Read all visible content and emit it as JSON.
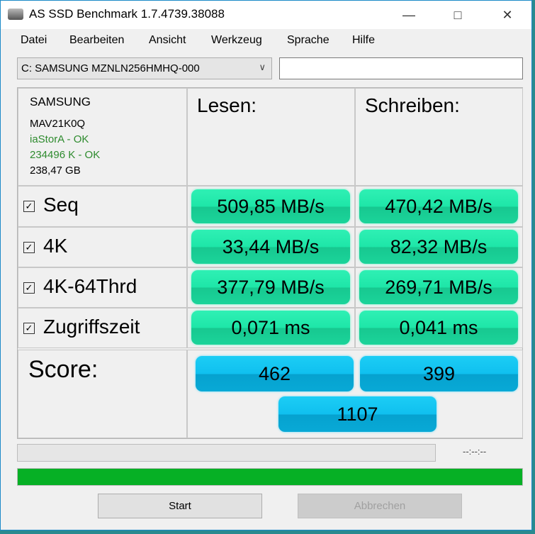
{
  "window": {
    "title": "AS SSD Benchmark 1.7.4739.38088"
  },
  "menu": [
    "Datei",
    "Bearbeiten",
    "Ansicht",
    "Werkzeug",
    "Sprache",
    "Hilfe"
  ],
  "drive_select": {
    "value": "C: SAMSUNG MZNLN256HMHQ-000"
  },
  "text_field": {
    "value": ""
  },
  "info": {
    "vendor": "SAMSUNG",
    "firmware": "MAV21K0Q",
    "driver": "iaStorA - OK",
    "alignment": "234496 K - OK",
    "size": "238,47 GB"
  },
  "headers": {
    "read": "Lesen:",
    "write": "Schreiben:"
  },
  "rows": [
    {
      "label": "Seq",
      "checked": true,
      "read": "509,85 MB/s",
      "write": "470,42 MB/s"
    },
    {
      "label": "4K",
      "checked": true,
      "read": "33,44 MB/s",
      "write": "82,32 MB/s"
    },
    {
      "label": "4K-64Thrd",
      "checked": true,
      "read": "377,79 MB/s",
      "write": "269,71 MB/s"
    },
    {
      "label": "Zugriffszeit",
      "checked": true,
      "read": "0,071 ms",
      "write": "0,041 ms"
    }
  ],
  "score": {
    "label": "Score:",
    "read": "462",
    "write": "399",
    "total": "1107"
  },
  "progress": {
    "test_progress": 0,
    "elapsed": "--:--:--",
    "overall_progress": 100
  },
  "buttons": {
    "start": "Start",
    "cancel": "Abbrechen"
  },
  "colors": {
    "result_green": "#1ee6a8",
    "score_blue": "#10c0ef",
    "progress_green": "#06b025",
    "ok_green": "#2e8b2e"
  }
}
